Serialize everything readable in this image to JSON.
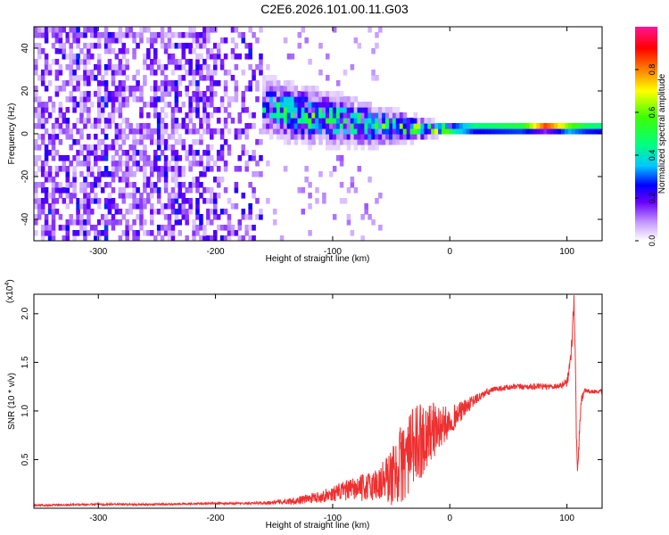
{
  "title": "C2E6.2026.101.00.11.G03",
  "spectrogram": {
    "type": "heatmap",
    "xlabel": "Height of straight line (km)",
    "ylabel": "Frequency (Hz)",
    "xlim": [
      -355,
      130
    ],
    "ylim": [
      -50,
      50
    ],
    "xticks": [
      -300,
      -200,
      -100,
      0,
      100
    ],
    "yticks": [
      -40,
      -20,
      0,
      20,
      40
    ],
    "colorbar": {
      "label": "Normalized spectral amplitude",
      "ticks": [
        0.0,
        0.2,
        0.4,
        0.6,
        0.8
      ],
      "range": [
        0,
        1
      ]
    },
    "ridge": {
      "x": [
        -170,
        -150,
        -130,
        -110,
        -90,
        -70,
        -50,
        -30,
        -15,
        0,
        20,
        40,
        60,
        80,
        100,
        115,
        130
      ],
      "center_hz": [
        14,
        10,
        8,
        6,
        5,
        3,
        2,
        1.5,
        1,
        1,
        1.5,
        1.5,
        1.5,
        2,
        1.5,
        1.5,
        1.5
      ],
      "halfwidth_hz": [
        10,
        12,
        12,
        11,
        10,
        9,
        7,
        5,
        3,
        2,
        2,
        2,
        2,
        2,
        2,
        2,
        2
      ],
      "peak_amp": [
        0.35,
        0.4,
        0.45,
        0.45,
        0.45,
        0.45,
        0.45,
        0.5,
        0.6,
        0.7,
        0.7,
        0.75,
        0.8,
        0.95,
        0.95,
        0.75,
        0.7
      ]
    }
  },
  "snr": {
    "type": "line",
    "xlabel": "Height of straight line (km)",
    "ylabel": "SNR (10 * v/v)",
    "multiplier": "(x10",
    "multiplier_exp": "4",
    "multiplier_close": ")",
    "xlim": [
      -355,
      130
    ],
    "ylim": [
      0,
      2.2
    ],
    "xticks": [
      -300,
      -200,
      -100,
      0,
      100
    ],
    "yticks": [
      0.5,
      1.0,
      1.5,
      2.0
    ],
    "ytick_labels": [
      "0.5",
      "1.0",
      "1.5",
      "2.0"
    ],
    "color": "#ee3030",
    "x": [
      -355,
      -300,
      -250,
      -200,
      -170,
      -150,
      -130,
      -110,
      -90,
      -70,
      -60,
      -50,
      -45,
      -40,
      -35,
      -30,
      -25,
      -20,
      -15,
      -10,
      -5,
      0,
      10,
      20,
      30,
      40,
      60,
      80,
      95,
      100,
      103,
      105,
      106,
      107,
      108,
      109,
      110,
      112,
      115,
      120,
      130
    ],
    "y": [
      0.03,
      0.04,
      0.04,
      0.05,
      0.05,
      0.06,
      0.08,
      0.12,
      0.18,
      0.22,
      0.26,
      0.32,
      0.4,
      0.48,
      0.55,
      0.62,
      0.7,
      0.75,
      0.8,
      0.82,
      0.85,
      0.9,
      1.0,
      1.1,
      1.18,
      1.23,
      1.25,
      1.25,
      1.26,
      1.3,
      1.5,
      1.9,
      2.2,
      1.6,
      0.8,
      0.3,
      0.6,
      1.1,
      1.22,
      1.2,
      1.2
    ],
    "noise_amp": [
      0.01,
      0.01,
      0.01,
      0.01,
      0.01,
      0.02,
      0.04,
      0.06,
      0.1,
      0.15,
      0.2,
      0.3,
      0.35,
      0.45,
      0.4,
      0.45,
      0.4,
      0.35,
      0.3,
      0.25,
      0.2,
      0.15,
      0.1,
      0.06,
      0.04,
      0.03,
      0.03,
      0.03,
      0.03,
      0.05,
      0.1,
      0.1,
      0.1,
      0.1,
      0.1,
      0.1,
      0.1,
      0.05,
      0.03,
      0.02,
      0.02
    ]
  }
}
